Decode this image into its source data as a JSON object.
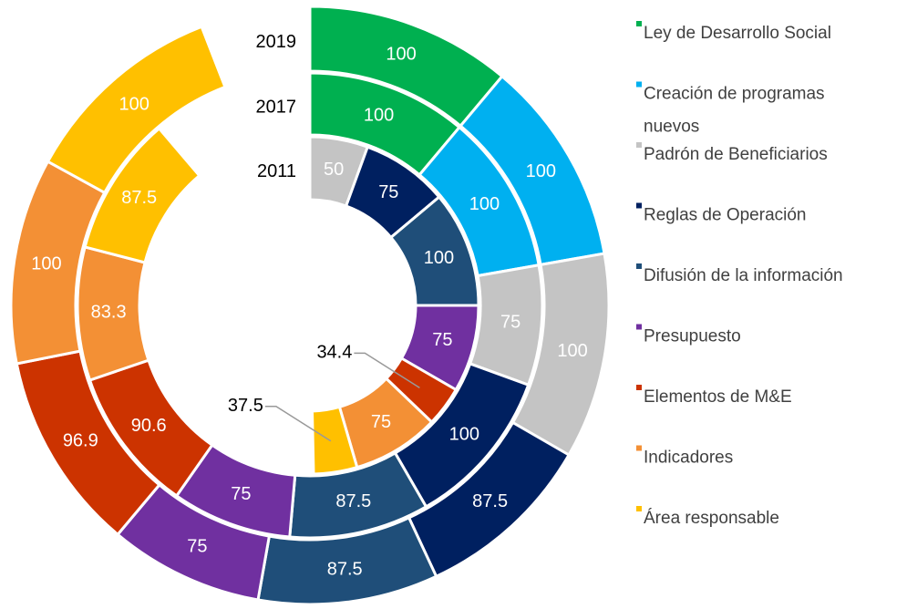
{
  "chart_data": {
    "type": "radial-bar",
    "categories": [
      "Ley de Desarrollo Social",
      "Creación de programas nuevos",
      "Padrón de Beneficiarios",
      "Reglas de Operación",
      "Difusión de la información",
      "Presupuesto",
      "Elementos de M&E",
      "Indicadores",
      "Área responsable"
    ],
    "colors": [
      "#00b050",
      "#00b0f0",
      "#c4c4c4",
      "#002060",
      "#1f4e79",
      "#7030a0",
      "#cc3300",
      "#f39035",
      "#ffc000"
    ],
    "series": [
      {
        "name": "2019",
        "values": [
          100,
          100,
          100,
          87.5,
          87.5,
          75,
          96.9,
          100,
          100
        ]
      },
      {
        "name": "2017",
        "values": [
          100,
          100,
          75,
          100,
          87.5,
          75,
          90.6,
          83.3,
          87.5
        ]
      },
      {
        "name": "2011",
        "values": [
          null,
          null,
          50,
          75,
          100,
          75,
          34.4,
          75,
          37.5
        ]
      }
    ],
    "legend": "right"
  }
}
